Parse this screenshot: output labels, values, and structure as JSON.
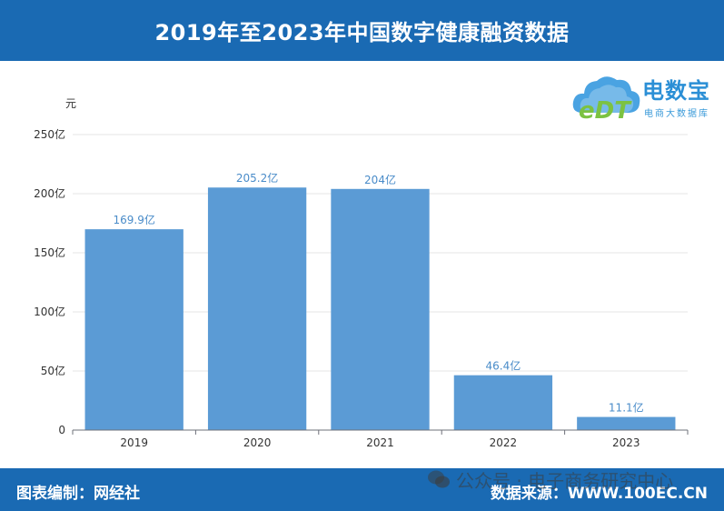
{
  "header": {
    "title": "2019年至2023年中国数字健康融资数据"
  },
  "logo": {
    "mark_text": "eDT",
    "name": "电数宝",
    "subtitle": "电商大数据库"
  },
  "footer": {
    "editor": "图表编制：网经社",
    "source": "数据来源：WWW.100EC.CN"
  },
  "watermark": {
    "text": "公众号 · 电子商务研究中心"
  },
  "colors": {
    "header_bg": "#1a6ab3",
    "bar": "#5b9bd5",
    "data_label": "#4a8cc9"
  },
  "chart_data": {
    "type": "bar",
    "unit_label": "元",
    "categories": [
      "2019",
      "2020",
      "2021",
      "2022",
      "2023"
    ],
    "values": [
      169.9,
      205.2,
      204,
      46.4,
      11.1
    ],
    "data_labels": [
      "169.9亿",
      "205.2亿",
      "204亿",
      "46.4亿",
      "11.1亿"
    ],
    "y_ticks": [
      0,
      50,
      100,
      150,
      200,
      250
    ],
    "y_tick_labels": [
      "0",
      "50亿",
      "100亿",
      "150亿",
      "200亿",
      "250亿"
    ],
    "ylim": [
      0,
      250
    ],
    "grid": true,
    "legend": "none"
  }
}
